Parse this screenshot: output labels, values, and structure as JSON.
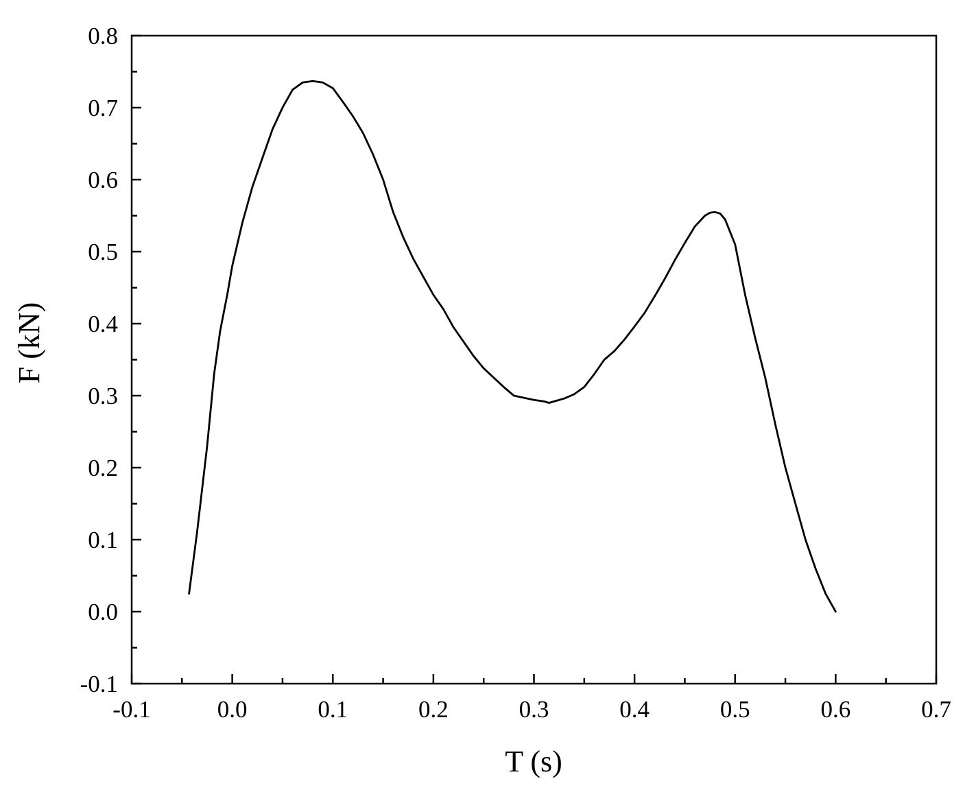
{
  "chart_data": {
    "type": "line",
    "title": "",
    "xlabel": "T (s)",
    "ylabel": "F (kN)",
    "xlim": [
      -0.1,
      0.7
    ],
    "ylim": [
      -0.1,
      0.8
    ],
    "x_ticks": [
      "-0.1",
      "0.0",
      "0.1",
      "0.2",
      "0.3",
      "0.4",
      "0.5",
      "0.6",
      "0.7"
    ],
    "y_ticks": [
      "-0.1",
      "0.0",
      "0.1",
      "0.2",
      "0.3",
      "0.4",
      "0.5",
      "0.6",
      "0.7",
      "0.8"
    ],
    "grid": false,
    "legend": "none",
    "line_color": "#000000",
    "series": [
      {
        "x": [
          -0.043,
          -0.035,
          -0.025,
          -0.018,
          -0.012,
          -0.005,
          0.0,
          0.01,
          0.02,
          0.03,
          0.04,
          0.05,
          0.06,
          0.07,
          0.08,
          0.09,
          0.1,
          0.11,
          0.12,
          0.13,
          0.14,
          0.15,
          0.16,
          0.17,
          0.18,
          0.19,
          0.2,
          0.21,
          0.22,
          0.23,
          0.24,
          0.25,
          0.26,
          0.27,
          0.28,
          0.29,
          0.3,
          0.31,
          0.315,
          0.32,
          0.33,
          0.34,
          0.35,
          0.36,
          0.37,
          0.38,
          0.39,
          0.4,
          0.41,
          0.42,
          0.43,
          0.44,
          0.45,
          0.46,
          0.47,
          0.475,
          0.48,
          0.485,
          0.49,
          0.5,
          0.51,
          0.52,
          0.53,
          0.54,
          0.55,
          0.56,
          0.57,
          0.58,
          0.59,
          0.6
        ],
        "y": [
          0.025,
          0.11,
          0.23,
          0.33,
          0.39,
          0.44,
          0.48,
          0.54,
          0.59,
          0.63,
          0.67,
          0.7,
          0.725,
          0.735,
          0.737,
          0.735,
          0.727,
          0.708,
          0.688,
          0.665,
          0.635,
          0.6,
          0.555,
          0.52,
          0.49,
          0.465,
          0.44,
          0.42,
          0.395,
          0.375,
          0.355,
          0.338,
          0.325,
          0.312,
          0.3,
          0.297,
          0.294,
          0.292,
          0.29,
          0.292,
          0.296,
          0.302,
          0.312,
          0.33,
          0.35,
          0.362,
          0.378,
          0.396,
          0.415,
          0.438,
          0.462,
          0.488,
          0.512,
          0.535,
          0.55,
          0.554,
          0.555,
          0.553,
          0.545,
          0.51,
          0.44,
          0.38,
          0.325,
          0.26,
          0.2,
          0.15,
          0.1,
          0.06,
          0.025,
          0.0
        ]
      }
    ]
  }
}
